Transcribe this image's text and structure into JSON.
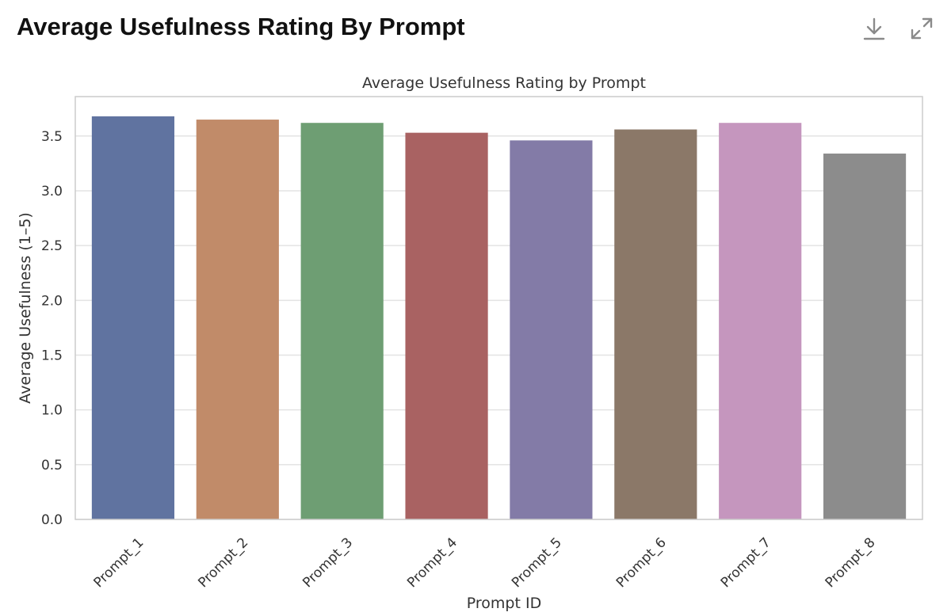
{
  "header": {
    "title": "Average Usefulness Rating By Prompt",
    "download_icon": "download-icon",
    "expand_icon": "expand-icon"
  },
  "colors": {
    "bars": [
      "#6073a0",
      "#c18b69",
      "#6e9e73",
      "#a96262",
      "#837ba7",
      "#8b7868",
      "#c596be",
      "#8c8c8c"
    ],
    "grid": "#e3e3e3",
    "frame": "#cccccc",
    "icon": "#8a8a8a"
  },
  "chart_data": {
    "type": "bar",
    "title": "Average Usefulness Rating by Prompt",
    "xlabel": "Prompt ID",
    "ylabel": "Average Usefulness (1–5)",
    "categories": [
      "Prompt_1",
      "Prompt_2",
      "Prompt_3",
      "Prompt_4",
      "Prompt_5",
      "Prompt_6",
      "Prompt_7",
      "Prompt_8"
    ],
    "values": [
      3.68,
      3.65,
      3.62,
      3.53,
      3.46,
      3.56,
      3.62,
      3.34
    ],
    "ylim": [
      0,
      3.86
    ],
    "yticks": [
      "0.0",
      "0.5",
      "1.0",
      "1.5",
      "2.0",
      "2.5",
      "3.0",
      "3.5"
    ],
    "grid": true,
    "legend": "none"
  }
}
